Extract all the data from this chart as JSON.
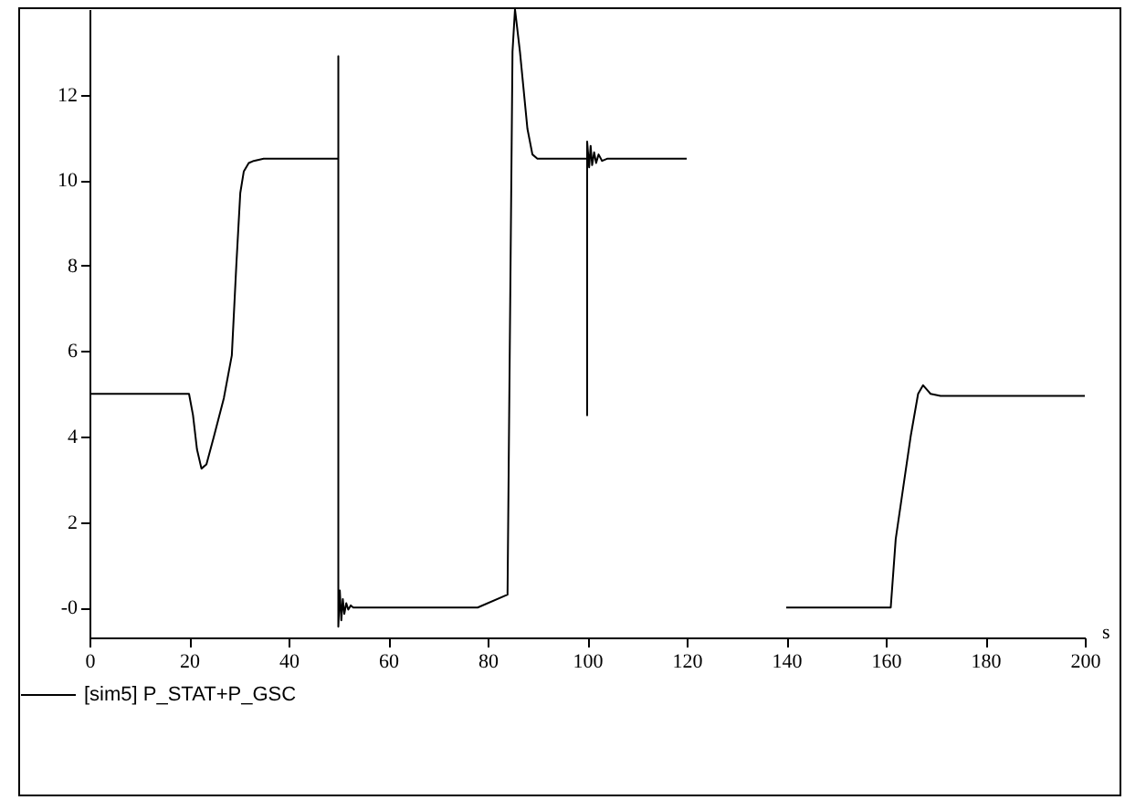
{
  "chart_data": {
    "type": "line",
    "xlabel": "s",
    "x": [
      0,
      20,
      20.8,
      21.6,
      22.5,
      23.5,
      25,
      27,
      28.6,
      29.5,
      30.3,
      31,
      32,
      33,
      35,
      40,
      50,
      50,
      50,
      50.3,
      50.6,
      50.9,
      51.2,
      51.6,
      52,
      52.5,
      53,
      54,
      55,
      60,
      70,
      78,
      84,
      85,
      85.5,
      86.5,
      88,
      89,
      90,
      95,
      100,
      100,
      100,
      100.4,
      100.7,
      101,
      101.4,
      101.8,
      102.3,
      103,
      104,
      110,
      120,
      130,
      140,
      150,
      161,
      162,
      163.5,
      165,
      166.5,
      167.5,
      169,
      171,
      180,
      190,
      200
    ],
    "series": [
      {
        "name": "[sim5]   P_STAT+P_GSC",
        "color": "#000000",
        "values": [
          5,
          5,
          4.5,
          3.7,
          3.25,
          3.35,
          4,
          4.9,
          5.9,
          8,
          9.7,
          10.2,
          10.4,
          10.45,
          10.5,
          10.5,
          10.5,
          12.9,
          -0.45,
          0.4,
          -0.3,
          0.2,
          -0.15,
          0.1,
          -0.05,
          0.05,
          0,
          0,
          0,
          0,
          0,
          0,
          0.3,
          13,
          14,
          13,
          11.2,
          10.6,
          10.5,
          10.5,
          10.5,
          4.5,
          10.9,
          10.3,
          10.8,
          10.35,
          10.65,
          10.4,
          10.6,
          10.45,
          10.5,
          10.5,
          10.5,
          null,
          0,
          0,
          0,
          1.6,
          2.8,
          4,
          5,
          5.2,
          5,
          4.95,
          4.95,
          4.95,
          4.95
        ]
      }
    ],
    "xlim": [
      0,
      200
    ],
    "xticks": [
      0,
      20,
      40,
      60,
      80,
      100,
      120,
      140,
      160,
      180,
      200
    ],
    "ylim": [
      -0.7,
      14
    ],
    "yticks": [
      {
        "value": 0,
        "label": "-0"
      },
      2,
      4,
      6,
      8,
      10,
      12
    ],
    "grid": false,
    "legend": "bottom left",
    "line_style": "solid",
    "marker": "none"
  }
}
